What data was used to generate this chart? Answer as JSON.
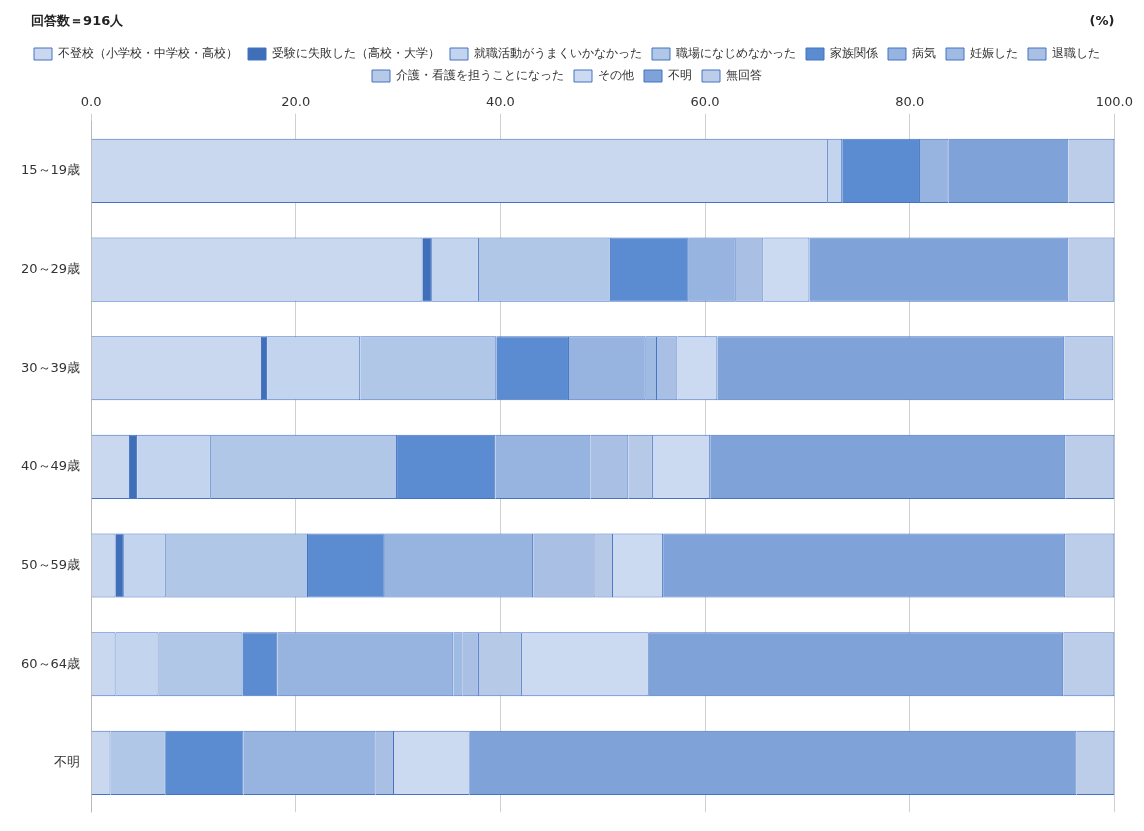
{
  "chart_data": {
    "type": "bar",
    "orientation": "horizontal",
    "stacked": true,
    "categories": [
      "15～19歳",
      "20～29歳",
      "30～39歳",
      "40～49歳",
      "50～59歳",
      "60～64歳",
      "不明"
    ],
    "series": [
      {
        "name": "不登校（小学校・中学校・高校）",
        "color": "#c9d8ee",
        "values": [
          72.0,
          32.4,
          16.7,
          3.8,
          2.4,
          2.4,
          1.9
        ]
      },
      {
        "name": "受験に失敗した（高校・大学）",
        "color": "#3f6fb8",
        "values": [
          null,
          0.9,
          0.5,
          0.7,
          0.8,
          null,
          null
        ]
      },
      {
        "name": "就職活動がうまくいかなかった",
        "color": "#c3d5ee",
        "values": [
          1.4,
          4.6,
          9.1,
          7.2,
          4.1,
          4.2,
          null
        ]
      },
      {
        "name": "職場になじめなかった",
        "color": "#b0c7e8",
        "values": [
          null,
          12.9,
          13.3,
          18.2,
          13.9,
          8.2,
          5.4
        ]
      },
      {
        "name": "家族関係",
        "color": "#5b8bd0",
        "values": [
          7.6,
          7.6,
          7.1,
          9.6,
          7.5,
          3.4,
          7.6
        ]
      },
      {
        "name": "病気",
        "color": "#97b3df",
        "values": [
          2.8,
          4.6,
          7.5,
          9.3,
          14.5,
          17.2,
          12.9
        ]
      },
      {
        "name": "妊娠した",
        "color": "#9fbbe3",
        "values": [
          null,
          null,
          1.1,
          null,
          null,
          0.9,
          null
        ]
      },
      {
        "name": "退職した",
        "color": "#a9c0e4",
        "values": [
          null,
          2.7,
          2.0,
          3.7,
          6.1,
          1.6,
          1.8
        ]
      },
      {
        "name": "介護・看護を担うことになった",
        "color": "#b6c9e6",
        "values": [
          null,
          null,
          null,
          2.4,
          1.7,
          4.2,
          null
        ]
      },
      {
        "name": "その他",
        "color": "#cbdaf0",
        "values": [
          null,
          4.5,
          3.9,
          5.6,
          4.9,
          12.4,
          7.4
        ]
      },
      {
        "name": "不明",
        "color": "#7fa3d8",
        "values": [
          11.7,
          25.3,
          33.9,
          34.7,
          39.3,
          40.5,
          59.3
        ]
      },
      {
        "name": "無回答",
        "color": "#bccde9",
        "values": [
          4.5,
          4.5,
          4.8,
          4.8,
          4.8,
          5.0,
          3.7
        ]
      }
    ],
    "xlim": [
      0,
      100
    ],
    "xticks": [
      {
        "value": 0,
        "label": "0.0"
      },
      {
        "value": 20,
        "label": "20.0"
      },
      {
        "value": 40,
        "label": "40.0"
      },
      {
        "value": 60,
        "label": "60.0"
      },
      {
        "value": 80,
        "label": "80.0"
      },
      {
        "value": 100,
        "label": "100.0"
      }
    ],
    "grid": "x",
    "legend": "top",
    "annotations": [
      "回答数＝916人",
      "(%)"
    ]
  }
}
